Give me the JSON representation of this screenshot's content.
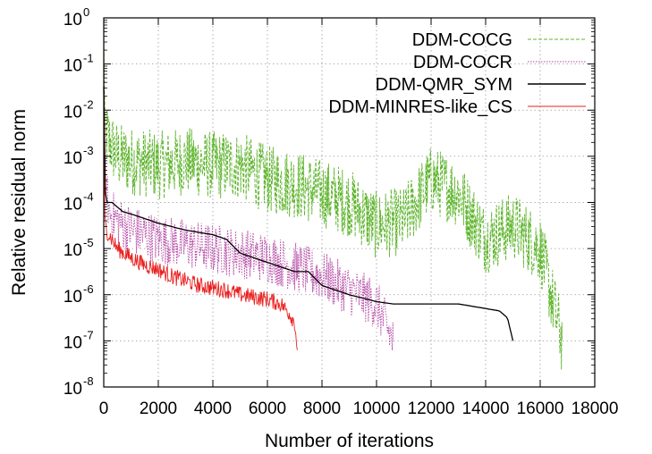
{
  "chart_data": {
    "type": "line",
    "xlabel": "Number of iterations",
    "ylabel": "Relative residual norm",
    "xlim": [
      0,
      18000
    ],
    "ylim_log10": [
      -8,
      0
    ],
    "y_scale": "log",
    "x_ticks": [
      0,
      2000,
      4000,
      6000,
      8000,
      10000,
      12000,
      14000,
      16000,
      18000
    ],
    "x_tick_labels": [
      "0",
      "2000",
      "4000",
      "6000",
      "8000",
      "10000",
      "12000",
      "14000",
      "16000",
      "18000"
    ],
    "y_ticks": [
      {
        "base": "10",
        "exp": "0"
      },
      {
        "base": "10",
        "exp": "-1"
      },
      {
        "base": "10",
        "exp": "-2"
      },
      {
        "base": "10",
        "exp": "-3"
      },
      {
        "base": "10",
        "exp": "-4"
      },
      {
        "base": "10",
        "exp": "-5"
      },
      {
        "base": "10",
        "exp": "-6"
      },
      {
        "base": "10",
        "exp": "-7"
      },
      {
        "base": "10",
        "exp": "-8"
      }
    ],
    "grid": "on (dotted)",
    "legend_position": "top-right",
    "series": [
      {
        "name": "DDM-COCG",
        "color": "#5fb52d",
        "style": "dashed",
        "x": [
          0,
          50,
          500,
          1000,
          2000,
          3000,
          4000,
          5000,
          6000,
          7000,
          8000,
          9000,
          10000,
          11000,
          12000,
          13000,
          14000,
          15000,
          16000,
          16800
        ],
        "log10_y": [
          -0.3,
          -2.5,
          -3.0,
          -3.1,
          -3.2,
          -3.1,
          -3.2,
          -3.2,
          -3.5,
          -3.6,
          -3.8,
          -4.0,
          -4.5,
          -4.4,
          -3.5,
          -3.8,
          -4.8,
          -4.5,
          -5.0,
          -7.0
        ]
      },
      {
        "name": "DDM-COCR",
        "color": "#b44aa5",
        "style": "dotted",
        "x": [
          0,
          50,
          200,
          500,
          1000,
          2000,
          3000,
          4000,
          5000,
          6000,
          7000,
          8000,
          9000,
          10000,
          10600
        ],
        "log10_y": [
          -2.0,
          -3.5,
          -4.2,
          -4.4,
          -4.6,
          -4.8,
          -4.9,
          -5.0,
          -5.1,
          -5.2,
          -5.4,
          -5.6,
          -5.9,
          -6.2,
          -7.0
        ]
      },
      {
        "name": "DDM-QMR_SYM",
        "color": "#000000",
        "style": "solid",
        "x": [
          0,
          30,
          100,
          300,
          500,
          700,
          1000,
          2000,
          3000,
          4000,
          4500,
          5000,
          6000,
          7000,
          7500,
          8000,
          9000,
          10000,
          10600,
          11000,
          12000,
          13000,
          13500,
          14000,
          14500,
          14800,
          15000
        ],
        "log10_y": [
          -1.5,
          -3.6,
          -4.0,
          -4.0,
          -4.1,
          -4.2,
          -4.25,
          -4.45,
          -4.6,
          -4.7,
          -4.8,
          -5.1,
          -5.3,
          -5.5,
          -5.5,
          -5.8,
          -6.0,
          -6.15,
          -6.2,
          -6.2,
          -6.2,
          -6.2,
          -6.25,
          -6.3,
          -6.35,
          -6.5,
          -7.0
        ]
      },
      {
        "name": "DDM-MINRES-like_CS",
        "color": "#e8201e",
        "style": "solid",
        "x": [
          0,
          30,
          100,
          300,
          500,
          1000,
          1500,
          2000,
          2500,
          3000,
          3500,
          4000,
          4500,
          5000,
          5500,
          6000,
          6500,
          6800,
          7000,
          7100
        ],
        "log10_y": [
          -1.0,
          -4.3,
          -4.6,
          -4.8,
          -5.0,
          -5.2,
          -5.35,
          -5.45,
          -5.6,
          -5.7,
          -5.8,
          -5.85,
          -5.9,
          -6.0,
          -6.05,
          -6.1,
          -6.2,
          -6.4,
          -6.6,
          -7.2
        ]
      }
    ]
  }
}
